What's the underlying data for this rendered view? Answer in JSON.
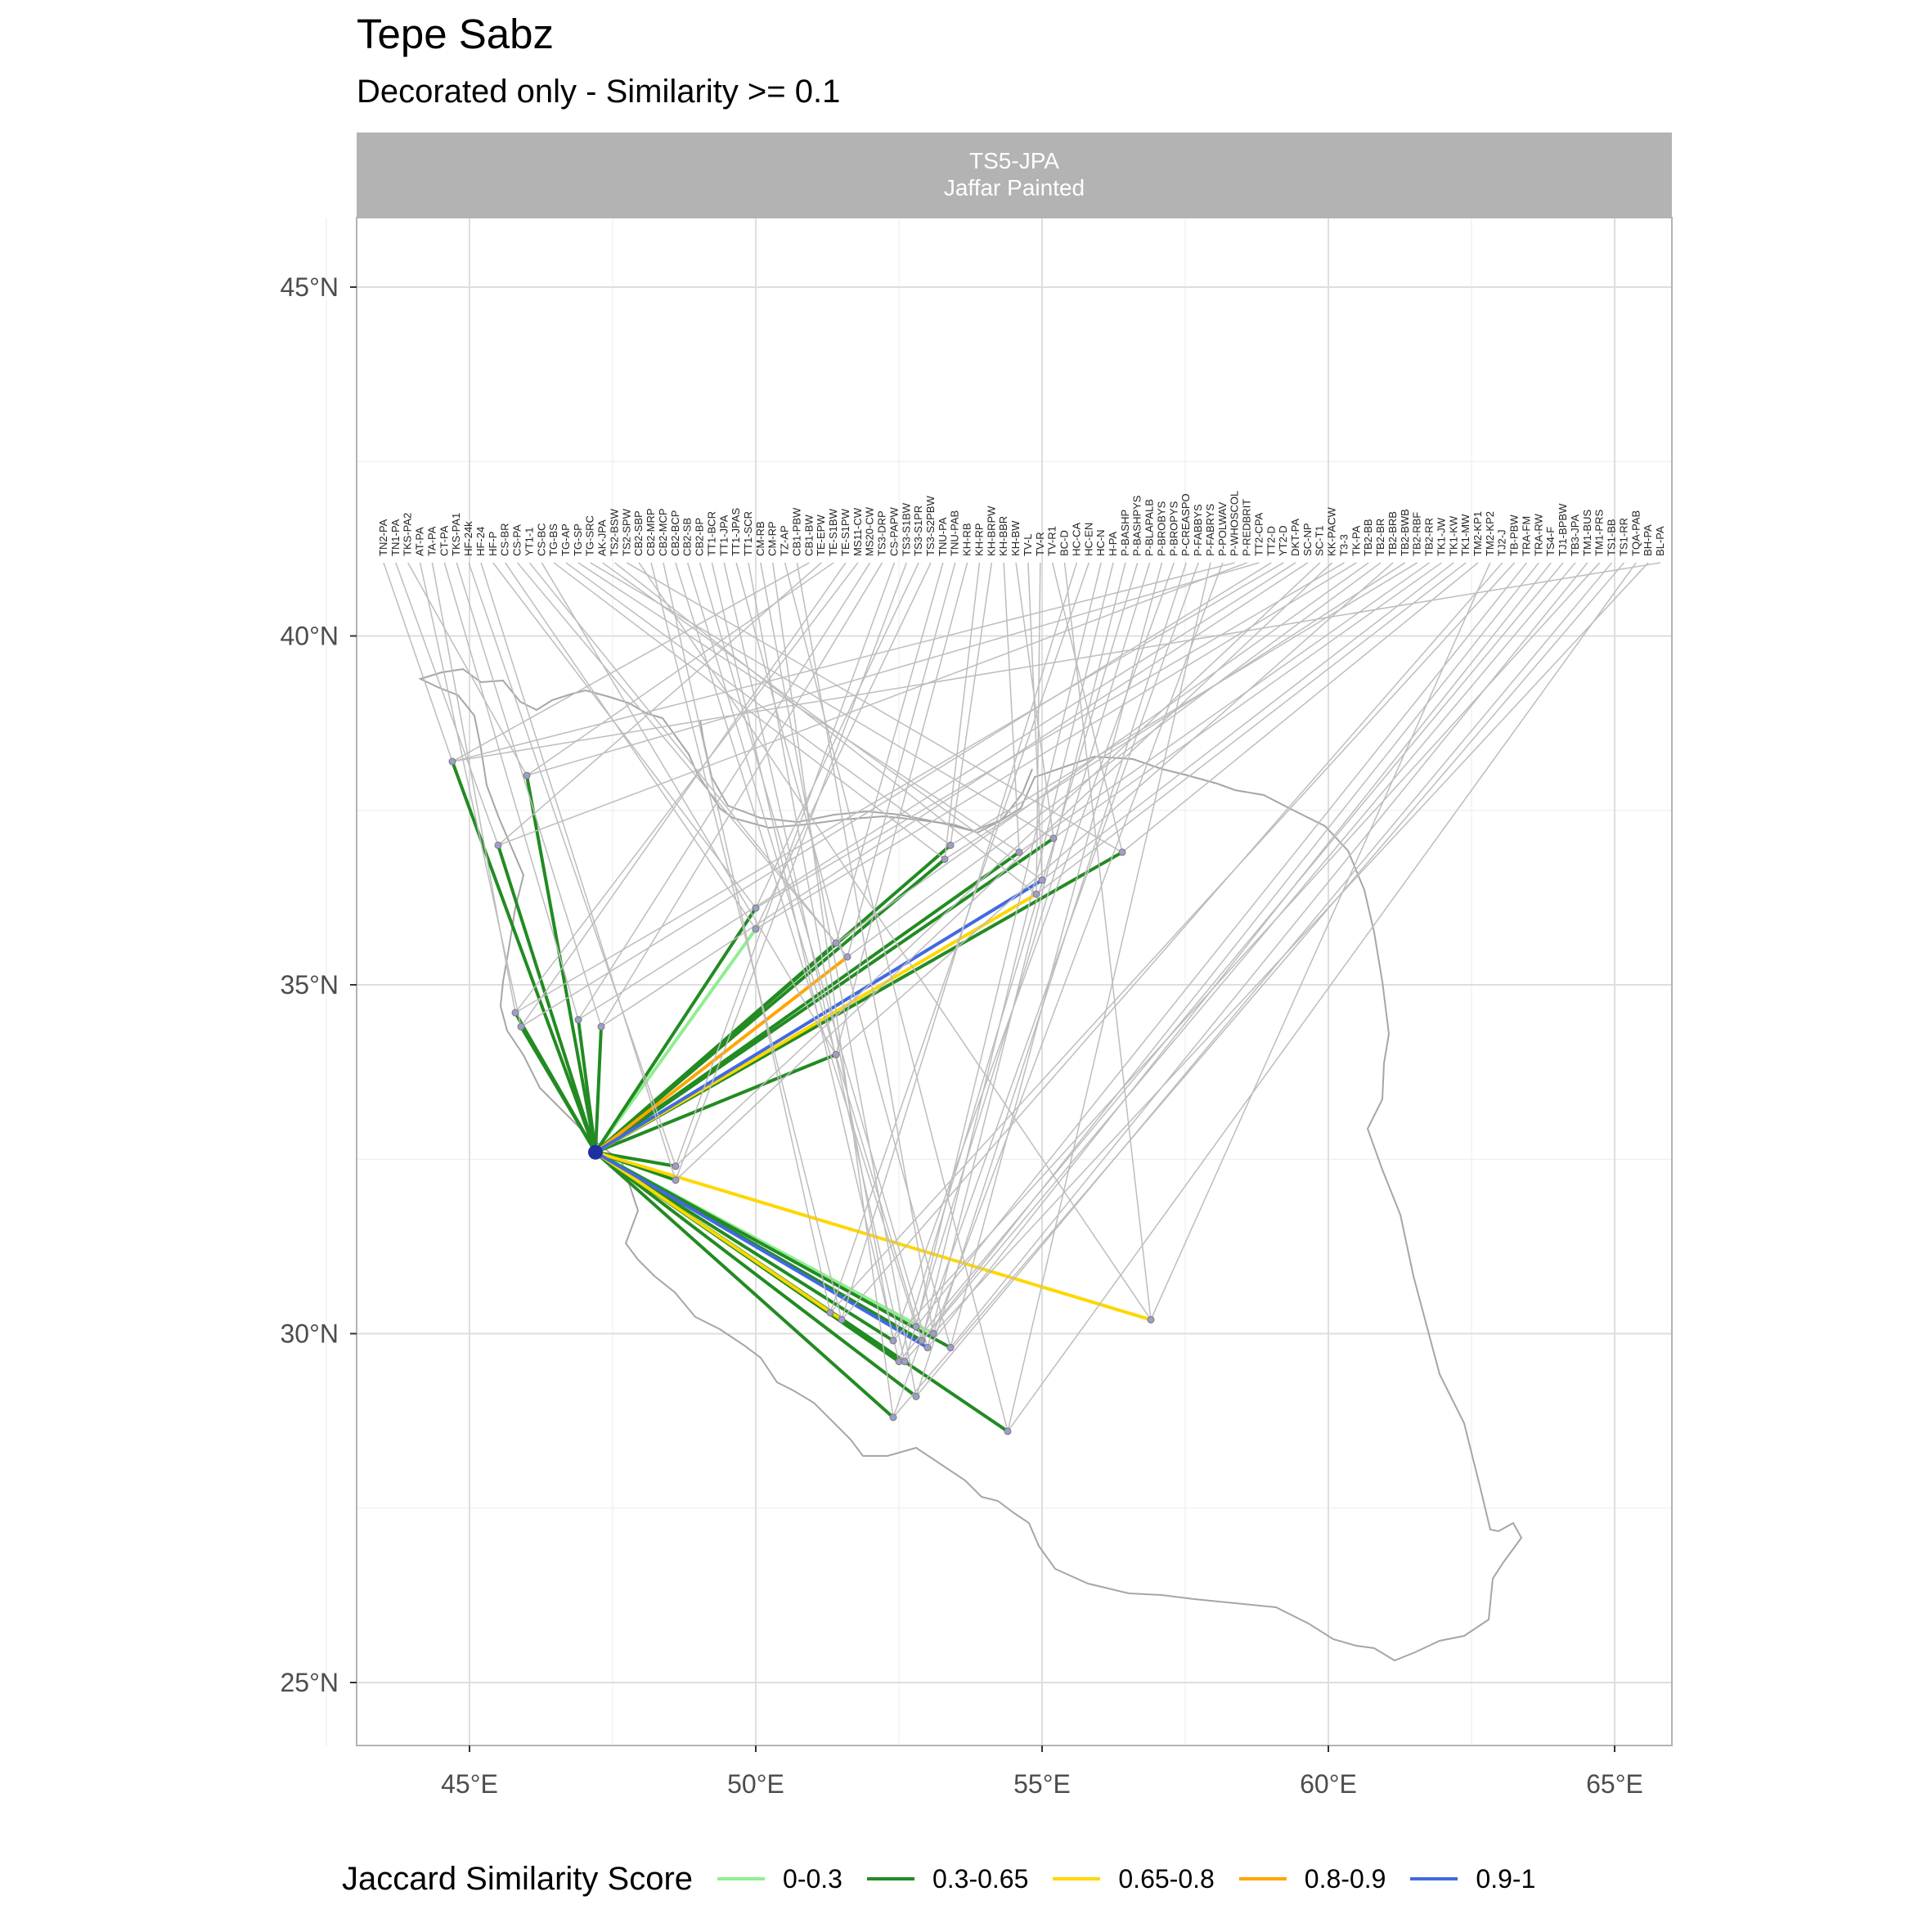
{
  "title": "Tepe Sabz",
  "subtitle": "Decorated only - Similarity >= 0.1",
  "facet": {
    "line1": "TS5-JPA",
    "line2": "Jaffar Painted"
  },
  "legend": {
    "title": "Jaccard Similarity Score",
    "items": [
      {
        "label": "0-0.3",
        "color": "#90ee90"
      },
      {
        "label": "0.3-0.65",
        "color": "#228b22"
      },
      {
        "label": "0.65-0.8",
        "color": "#ffd700"
      },
      {
        "label": "0.8-0.9",
        "color": "#ffa500"
      },
      {
        "label": "0.9-1",
        "color": "#4169e1"
      }
    ]
  },
  "chart_data": {
    "type": "map",
    "x_ticks": [
      "45°E",
      "50°E",
      "55°E",
      "60°E",
      "65°E"
    ],
    "y_ticks": [
      "45°N",
      "40°N",
      "35°N",
      "30°N",
      "25°N"
    ],
    "xlim": [
      43.0,
      66.0
    ],
    "ylim": [
      24.0,
      47.0
    ],
    "focal_site": {
      "code": "TS5-JPA",
      "lon": 47.2,
      "lat": 32.6
    },
    "label_row_lat": 41.05,
    "site_labels": [
      "TN2-PA",
      "TN1-PA",
      "TKS-PA2",
      "AT-PA",
      "TA-PA",
      "CT-PA",
      "TKS-PA1",
      "HF-24k",
      "HF-24",
      "HF-P",
      "CS-BR",
      "CS-PA",
      "YT1-1",
      "CS-BC",
      "TG-BS",
      "TG-AP",
      "TG-SP",
      "TG-SRC",
      "AK-JPA",
      "TS2-BSW",
      "TS2-SPW",
      "CB2-SBP",
      "CB2-MRP",
      "CB2-MCP",
      "CB2-BCP",
      "CB2-SB",
      "CB2-BP",
      "TT1-BCR",
      "TT1-JPA",
      "TT1-JPAS",
      "TT1-SCR",
      "CM-RB",
      "CM-RP",
      "TZ-AP",
      "CB1-PBW",
      "CB1-BW",
      "TE-EPW",
      "TE-S1BW",
      "TE-S1PW",
      "MS11-CW",
      "MS20-CW",
      "TS3-DRP",
      "CS-PAPW",
      "TS3-S1BW",
      "TS3-S1PR",
      "TS3-S2PBW",
      "TNU-PA",
      "TNU-PAB",
      "KH-RB",
      "KH-RP",
      "KH-BRPW",
      "KH-BBR",
      "KH-BW",
      "TV-L",
      "TV-R",
      "TV-R1",
      "BC-D",
      "HC-CA",
      "HC-EN",
      "HC-N",
      "H-PA",
      "P-BASHP",
      "P-BASHPYS",
      "P-BLAPALB",
      "P-BROBYS",
      "P-BROPYS",
      "P-CREASPO",
      "P-FABBYS",
      "P-FABRYS",
      "P-POLWAV",
      "P-WHOSCOL",
      "P-REDBRIT",
      "TT2-CPA",
      "TT2-D",
      "YT2-D",
      "DKT-PA",
      "SC-NP",
      "SC-T1",
      "KK-PACW",
      "T3-3",
      "TK-PA",
      "TB2-BB",
      "TB2-BR",
      "TB2-BRB",
      "TB2-BWB",
      "TB2-RBF",
      "TB2-RR",
      "TK1-JW",
      "TK1-KW",
      "TK1-MW",
      "TM2-KP1",
      "TM2-KP2",
      "TJ2-J",
      "TB-PBW",
      "TRA-FM",
      "TRA-RW",
      "TS4-F",
      "TJ1-BPBW",
      "TB3-JPA",
      "TM1-BUS",
      "TM1-PRS",
      "TS1-BB",
      "TS1-RR",
      "TQA-PAB",
      "BH-PA",
      "BL-PA"
    ],
    "links": [
      {
        "lon": 44.7,
        "lat": 38.2,
        "band": "0.3-0.65"
      },
      {
        "lon": 45.5,
        "lat": 37.0,
        "band": "0.3-0.65"
      },
      {
        "lon": 46.0,
        "lat": 38.0,
        "band": "0.3-0.65"
      },
      {
        "lon": 45.9,
        "lat": 34.4,
        "band": "0.3-0.65"
      },
      {
        "lon": 45.8,
        "lat": 34.6,
        "band": "0.3-0.65"
      },
      {
        "lon": 46.9,
        "lat": 34.5,
        "band": "0.3-0.65"
      },
      {
        "lon": 47.3,
        "lat": 34.4,
        "band": "0.3-0.65"
      },
      {
        "lon": 48.6,
        "lat": 32.4,
        "band": "0.3-0.65"
      },
      {
        "lon": 48.6,
        "lat": 32.2,
        "band": "0.3-0.65"
      },
      {
        "lon": 50.0,
        "lat": 36.1,
        "band": "0.3-0.65"
      },
      {
        "lon": 50.0,
        "lat": 35.8,
        "band": "0-0.3"
      },
      {
        "lon": 51.4,
        "lat": 35.6,
        "band": "0.3-0.65"
      },
      {
        "lon": 51.6,
        "lat": 35.4,
        "band": "0.8-0.9"
      },
      {
        "lon": 51.4,
        "lat": 34.0,
        "band": "0.3-0.65"
      },
      {
        "lon": 53.3,
        "lat": 36.8,
        "band": "0.3-0.65"
      },
      {
        "lon": 53.4,
        "lat": 37.0,
        "band": "0.3-0.65"
      },
      {
        "lon": 54.6,
        "lat": 36.9,
        "band": "0.3-0.65"
      },
      {
        "lon": 55.2,
        "lat": 37.1,
        "band": "0.3-0.65"
      },
      {
        "lon": 55.0,
        "lat": 36.5,
        "band": "0.9-1"
      },
      {
        "lon": 54.9,
        "lat": 36.3,
        "band": "0.65-0.8"
      },
      {
        "lon": 56.4,
        "lat": 36.9,
        "band": "0.3-0.65"
      },
      {
        "lon": 56.9,
        "lat": 30.2,
        "band": "0.65-0.8"
      },
      {
        "lon": 51.5,
        "lat": 30.2,
        "band": "0.65-0.8"
      },
      {
        "lon": 51.3,
        "lat": 30.3,
        "band": "0.3-0.65"
      },
      {
        "lon": 52.8,
        "lat": 30.1,
        "band": "0-0.3"
      },
      {
        "lon": 52.9,
        "lat": 29.9,
        "band": "0.3-0.65"
      },
      {
        "lon": 53.0,
        "lat": 29.8,
        "band": "0.9-1"
      },
      {
        "lon": 52.5,
        "lat": 29.6,
        "band": "0.3-0.65"
      },
      {
        "lon": 52.6,
        "lat": 29.6,
        "band": "0.3-0.65"
      },
      {
        "lon": 53.4,
        "lat": 29.8,
        "band": "0.3-0.65"
      },
      {
        "lon": 52.4,
        "lat": 29.9,
        "band": "0.3-0.65"
      },
      {
        "lon": 52.8,
        "lat": 29.1,
        "band": "0.3-0.65"
      },
      {
        "lon": 52.4,
        "lat": 28.8,
        "band": "0.3-0.65"
      },
      {
        "lon": 54.4,
        "lat": 28.6,
        "band": "0.3-0.65"
      },
      {
        "lon": 53.1,
        "lat": 30.0,
        "band": "0-0.3"
      }
    ]
  }
}
